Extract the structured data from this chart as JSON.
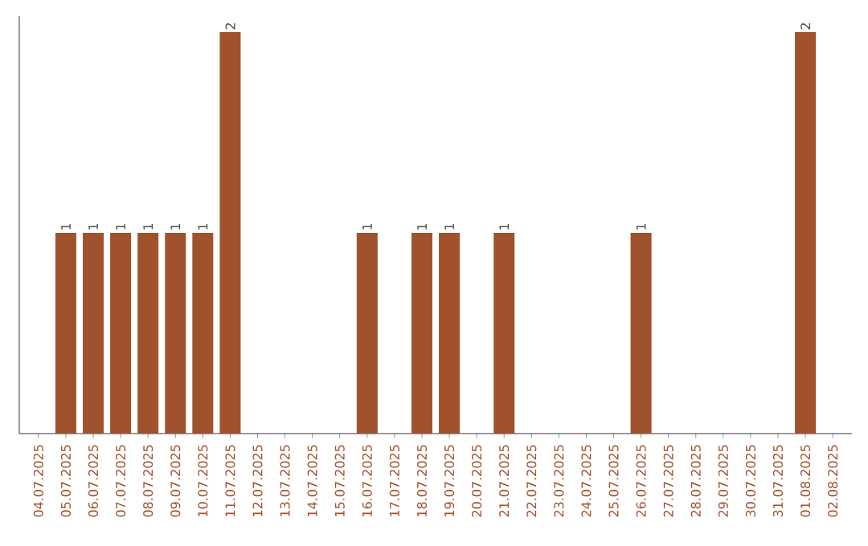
{
  "chart_data": {
    "type": "bar",
    "categories": [
      "04.07.2025",
      "05.07.2025",
      "06.07.2025",
      "07.07.2025",
      "08.07.2025",
      "09.07.2025",
      "10.07.2025",
      "11.07.2025",
      "12.07.2025",
      "13.07.2025",
      "14.07.2025",
      "15.07.2025",
      "16.07.2025",
      "17.07.2025",
      "18.07.2025",
      "19.07.2025",
      "20.07.2025",
      "21.07.2025",
      "22.07.2025",
      "23.07.2025",
      "24.07.2025",
      "25.07.2025",
      "26.07.2025",
      "27.07.2025",
      "28.07.2025",
      "29.07.2025",
      "30.07.2025",
      "31.07.2025",
      "01.08.2025",
      "02.08.2025"
    ],
    "values": [
      0,
      1,
      1,
      1,
      1,
      1,
      1,
      2,
      0,
      0,
      0,
      0,
      1,
      0,
      1,
      1,
      0,
      1,
      0,
      0,
      0,
      0,
      1,
      0,
      0,
      0,
      0,
      0,
      2,
      0
    ],
    "value_labels": [
      null,
      "1",
      "1",
      "1",
      "1",
      "1",
      "1",
      "2",
      null,
      null,
      null,
      null,
      "1",
      null,
      "1",
      "1",
      null,
      "1",
      null,
      null,
      null,
      null,
      "1",
      null,
      null,
      null,
      null,
      null,
      "2",
      null
    ],
    "color": "#a0522d"
  }
}
